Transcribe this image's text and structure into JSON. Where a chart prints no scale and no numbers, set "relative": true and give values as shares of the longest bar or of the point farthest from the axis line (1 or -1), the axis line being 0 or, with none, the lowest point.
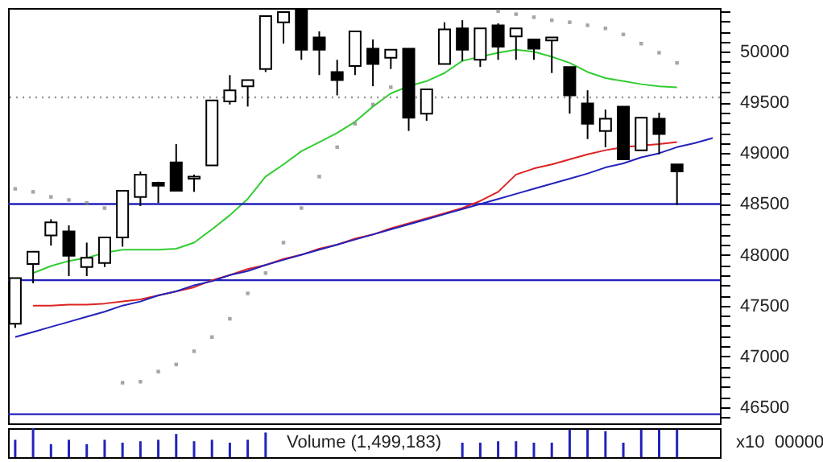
{
  "chart_data": [
    {
      "type": "candlestick",
      "categories": [
        null,
        null,
        null,
        null,
        null,
        null,
        null,
        null,
        null,
        null,
        null,
        null,
        null,
        null,
        null,
        null,
        null,
        null,
        null,
        null,
        null,
        null,
        null,
        null,
        null,
        null,
        null,
        null,
        null,
        null,
        null,
        null,
        null,
        null,
        null,
        null,
        null,
        null,
        null,
        null
      ],
      "ohlc": [
        [
          47320,
          47770,
          47280,
          47770
        ],
        [
          47910,
          48030,
          47720,
          48030
        ],
        [
          48190,
          48350,
          48090,
          48320
        ],
        [
          48230,
          48290,
          47790,
          47990
        ],
        [
          47880,
          48120,
          47790,
          47970
        ],
        [
          47920,
          48170,
          47880,
          48170
        ],
        [
          48170,
          48630,
          48080,
          48630
        ],
        [
          48570,
          48820,
          48480,
          48790
        ],
        [
          48710,
          48720,
          48510,
          48680
        ],
        [
          48910,
          49090,
          48630,
          48630
        ],
        [
          48750,
          48790,
          48620,
          48770
        ],
        [
          48880,
          49520,
          48880,
          49520
        ],
        [
          49510,
          49770,
          49480,
          49620
        ],
        [
          49660,
          49720,
          49460,
          49720
        ],
        [
          49830,
          50350,
          49800,
          50350
        ],
        [
          50290,
          50400,
          50080,
          50390
        ],
        [
          50420,
          50420,
          49920,
          50020
        ],
        [
          50140,
          50200,
          49770,
          50020
        ],
        [
          49800,
          49920,
          49570,
          49720
        ],
        [
          49860,
          50200,
          49770,
          50200
        ],
        [
          50030,
          50120,
          49660,
          49880
        ],
        [
          49940,
          50020,
          49830,
          50020
        ],
        [
          50030,
          50030,
          49220,
          49350
        ],
        [
          49390,
          49630,
          49320,
          49630
        ],
        [
          49880,
          50290,
          49880,
          50220
        ],
        [
          50230,
          50310,
          49910,
          50020
        ],
        [
          49920,
          50230,
          49850,
          50230
        ],
        [
          50260,
          50280,
          49920,
          50050
        ],
        [
          50150,
          50230,
          49920,
          50230
        ],
        [
          50120,
          50120,
          49920,
          50030
        ],
        [
          50110,
          50140,
          49790,
          50140
        ],
        [
          49850,
          49850,
          49390,
          49570
        ],
        [
          49490,
          49620,
          49140,
          49290
        ],
        [
          49220,
          49430,
          49060,
          49340
        ],
        [
          49460,
          49460,
          48940,
          48940
        ],
        [
          49030,
          49350,
          49030,
          49350
        ],
        [
          49340,
          49400,
          48990,
          49190
        ],
        [
          48890,
          48890,
          48490,
          48820
        ],
        null,
        null
      ],
      "series": [
        {
          "type": "line",
          "color": "#33cc33",
          "values": [
            null,
            47820,
            47890,
            47940,
            47970,
            48020,
            48050,
            48050,
            48050,
            48060,
            48120,
            48250,
            48390,
            48550,
            48770,
            48890,
            49020,
            49110,
            49200,
            49310,
            49460,
            49590,
            49660,
            49710,
            49790,
            49910,
            null,
            49990,
            50020,
            50000,
            49950,
            49890,
            49800,
            49740,
            49710,
            49680,
            49660,
            49650,
            null,
            null
          ]
        },
        {
          "type": "line",
          "color": "#dd2222",
          "values": [
            null,
            47500,
            47500,
            47510,
            47510,
            47520,
            47540,
            47560,
            47600,
            47640,
            47680,
            47750,
            47800,
            47860,
            47900,
            47960,
            48000,
            48060,
            48100,
            48160,
            48200,
            48260,
            48310,
            48360,
            48410,
            48460,
            48530,
            48620,
            48790,
            48850,
            48890,
            48940,
            48990,
            49030,
            49060,
            null,
            49090,
            49110,
            null,
            null
          ]
        },
        {
          "type": "line",
          "color": "#2222bb",
          "values": [
            47190,
            47240,
            47290,
            47340,
            47390,
            47440,
            47500,
            47540,
            47600,
            47640,
            47700,
            47740,
            47800,
            47840,
            47900,
            47950,
            48000,
            48050,
            48100,
            48150,
            48200,
            48250,
            48300,
            48350,
            48400,
            48450,
            48500,
            48550,
            48600,
            48650,
            48700,
            48750,
            48800,
            48860,
            48900,
            48960,
            49000,
            49060,
            49100,
            49150
          ]
        },
        {
          "type": "scatter",
          "color": "#808080",
          "marker": "square",
          "values": [
            48650,
            48620,
            48570,
            48540,
            48510,
            48460,
            46740,
            46750,
            46850,
            46920,
            47050,
            47190,
            47370,
            47620,
            47820,
            48120,
            48460,
            48770,
            49060,
            49290,
            49480,
            49650,
            null,
            null,
            null,
            null,
            null,
            50400,
            50370,
            50340,
            50310,
            50290,
            50260,
            50230,
            50170,
            50080,
            49990,
            49890,
            null,
            null
          ]
        }
      ],
      "ref_lines": [
        {
          "axis": "y",
          "value": 48500,
          "color": "#2222bb"
        },
        {
          "axis": "y",
          "value": 47750,
          "color": "#2222bb"
        },
        {
          "axis": "y",
          "value": 46430,
          "color": "#2222bb"
        },
        {
          "axis": "y",
          "value": 49550,
          "color": "#999999",
          "line_style": "dotted"
        }
      ],
      "ylim": [
        46340,
        50430
      ],
      "yticks": [
        {
          "value": 46400,
          "label": null
        },
        46500,
        {
          "value": 46600,
          "label": null
        },
        {
          "value": 46700,
          "label": null
        },
        {
          "value": 46800,
          "label": null
        },
        {
          "value": 46900,
          "label": null
        },
        47000,
        {
          "value": 47100,
          "label": null
        },
        {
          "value": 47200,
          "label": null
        },
        {
          "value": 47300,
          "label": null
        },
        {
          "value": 47400,
          "label": null
        },
        47500,
        {
          "value": 47600,
          "label": null
        },
        {
          "value": 47700,
          "label": null
        },
        {
          "value": 47800,
          "label": null
        },
        {
          "value": 47900,
          "label": null
        },
        48000,
        {
          "value": 48100,
          "label": null
        },
        {
          "value": 48200,
          "label": null
        },
        {
          "value": 48300,
          "label": null
        },
        {
          "value": 48400,
          "label": null
        },
        48500,
        {
          "value": 48600,
          "label": null
        },
        {
          "value": 48700,
          "label": null
        },
        {
          "value": 48800,
          "label": null
        },
        {
          "value": 48900,
          "label": null
        },
        49000,
        {
          "value": 49100,
          "label": null
        },
        {
          "value": 49200,
          "label": null
        },
        {
          "value": 49300,
          "label": null
        },
        {
          "value": 49400,
          "label": null
        },
        49500,
        {
          "value": 49600,
          "label": null
        },
        {
          "value": 49700,
          "label": null
        },
        {
          "value": 49800,
          "label": null
        },
        {
          "value": 49900,
          "label": null
        },
        50000,
        {
          "value": 50100,
          "label": null
        },
        {
          "value": 50200,
          "label": null
        },
        {
          "value": 50300,
          "label": null
        },
        {
          "value": 50400,
          "label": null
        }
      ],
      "tick_labels": "y"
    },
    {
      "type": "bar",
      "relative": true,
      "color": "#2222bb",
      "categories": [
        null,
        null,
        null,
        null,
        null,
        null,
        null,
        null,
        null,
        null,
        null,
        null,
        null,
        null,
        null,
        null,
        null,
        null,
        null,
        null,
        null,
        null,
        null,
        null,
        null,
        null,
        null,
        null,
        null,
        null,
        null,
        null,
        null,
        null,
        null,
        null,
        null,
        null,
        null,
        null
      ],
      "values": [
        0.6,
        1,
        0.45,
        0.6,
        0.45,
        0.6,
        0.5,
        0.55,
        0.6,
        0.8,
        0.55,
        0.6,
        0.5,
        0.6,
        0.85,
        null,
        null,
        null,
        null,
        null,
        null,
        null,
        null,
        null,
        null,
        0.5,
        0.5,
        0.55,
        0.55,
        0.5,
        0.5,
        0.95,
        0.95,
        0.9,
        0.5,
        0.95,
        0.95,
        0.95,
        null,
        null
      ],
      "annotations": [
        "Volume (1,499,183)",
        "x10",
        "00000"
      ],
      "tick_labels": false
    }
  ]
}
